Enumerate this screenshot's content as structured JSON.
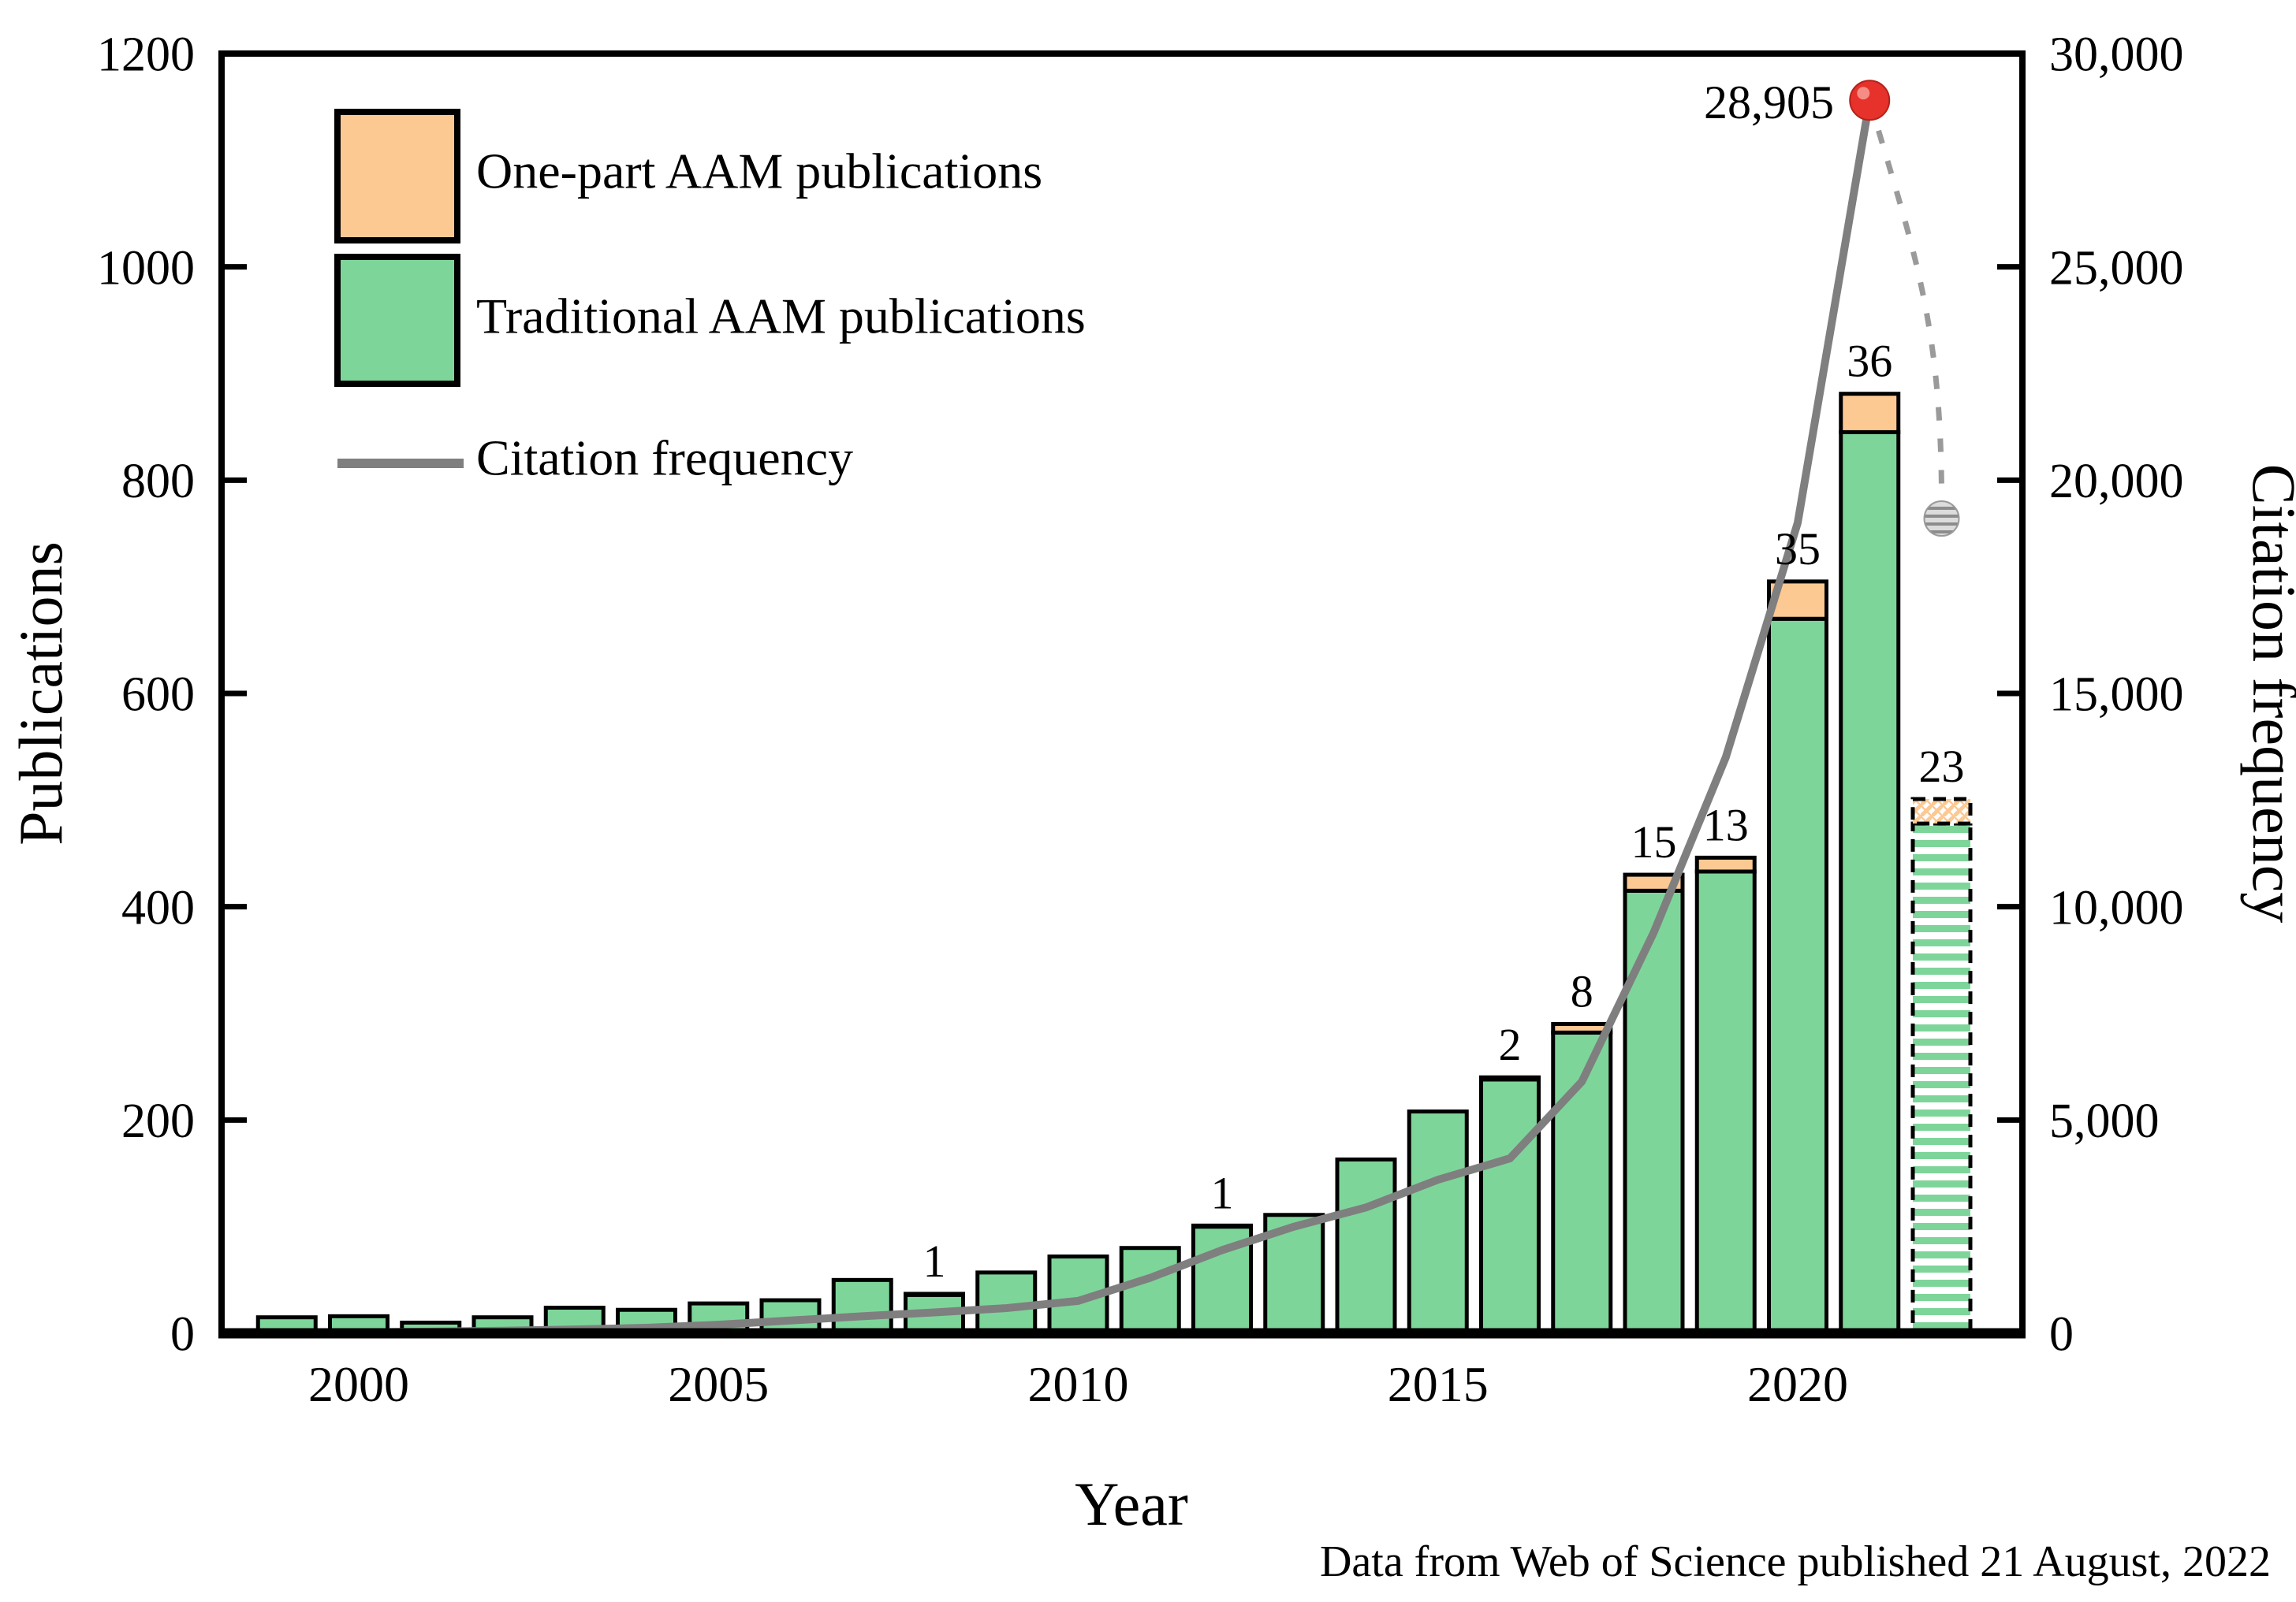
{
  "figure": {
    "footnote": "Data from Web of Science published 21 August, 2022"
  },
  "axes": {
    "x": {
      "title": "Year",
      "tick_years": [
        2000,
        2005,
        2010,
        2015,
        2020
      ],
      "tick_labels": [
        "2000",
        "2005",
        "2010",
        "2015",
        "2020"
      ]
    },
    "y_left": {
      "title": "Publications",
      "min": 0,
      "max": 1200,
      "step": 200,
      "tick_labels": [
        "0",
        "200",
        "400",
        "600",
        "800",
        "1000",
        "1200"
      ]
    },
    "y_right": {
      "title": "Citation frequency",
      "min": 0,
      "max": 30000,
      "step": 5000,
      "tick_labels": [
        "0",
        "5,000",
        "10,000",
        "15,000",
        "20,000",
        "25,000",
        "30,000"
      ]
    }
  },
  "legend": {
    "items": [
      {
        "label": "One-part AAM publications",
        "swatch": "orange-patch"
      },
      {
        "label": "Traditional AAM publications",
        "swatch": "green-patch"
      },
      {
        "label": "Citation frequency",
        "swatch": "gray-line"
      }
    ]
  },
  "colors": {
    "green": "#7ed59a",
    "orange": "#fcc993",
    "line_gray": "#7f7f7f",
    "red": "#e6322a",
    "black": "#000000"
  },
  "chart_data": {
    "type": "combo-stacked-bar-line",
    "title": "",
    "xlabel": "Year",
    "ylabel_left": "Publications",
    "ylabel_right": "Citation frequency",
    "ylim_left": [
      0,
      1200
    ],
    "ylim_right": [
      0,
      30000
    ],
    "grid": false,
    "legend_position": "top-left-inside",
    "years": [
      1999,
      2000,
      2001,
      2002,
      2003,
      2004,
      2005,
      2006,
      2007,
      2008,
      2009,
      2010,
      2011,
      2012,
      2013,
      2014,
      2015,
      2016,
      2017,
      2018,
      2019,
      2020,
      2021,
      2022
    ],
    "series": [
      {
        "name": "Traditional AAM publications",
        "type": "bar",
        "stack": true,
        "color": "#7ed59a",
        "values": [
          15,
          16,
          10,
          15,
          24,
          22,
          28,
          31,
          50,
          36,
          57,
          72,
          80,
          100,
          111,
          163,
          208,
          238,
          282,
          415,
          433,
          670,
          845,
          478
        ]
      },
      {
        "name": "One-part AAM publications",
        "type": "bar",
        "stack": true,
        "color": "#fcc993",
        "values": [
          0,
          0,
          0,
          0,
          0,
          0,
          0,
          0,
          0,
          1,
          0,
          0,
          0,
          1,
          0,
          0,
          0,
          2,
          8,
          15,
          13,
          35,
          36,
          23
        ]
      },
      {
        "name": "Citation frequency",
        "type": "line",
        "axis": "right",
        "color": "#7f7f7f",
        "values": [
          5,
          20,
          40,
          60,
          90,
          130,
          200,
          300,
          400,
          490,
          590,
          760,
          1300,
          1950,
          2500,
          2950,
          3600,
          4100,
          5900,
          9400,
          13500,
          19000,
          28905,
          null
        ]
      }
    ],
    "bar_value_labels": [
      "",
      "",
      "",
      "",
      "",
      "",
      "",
      "",
      "",
      "1",
      "",
      "",
      "",
      "1",
      "",
      "",
      "",
      "2",
      "8",
      "15",
      "13",
      "35",
      "36",
      "23"
    ],
    "projected_year": 2022,
    "projected_bar_style": "hatched-dashed-outline",
    "highlight_point": {
      "year": 2021,
      "value": 28905,
      "label": "28,905",
      "color": "#e6322a"
    },
    "projected_point": {
      "year": 2022,
      "value": 19100,
      "style": "hatched-gray",
      "connector": "dashed"
    }
  }
}
